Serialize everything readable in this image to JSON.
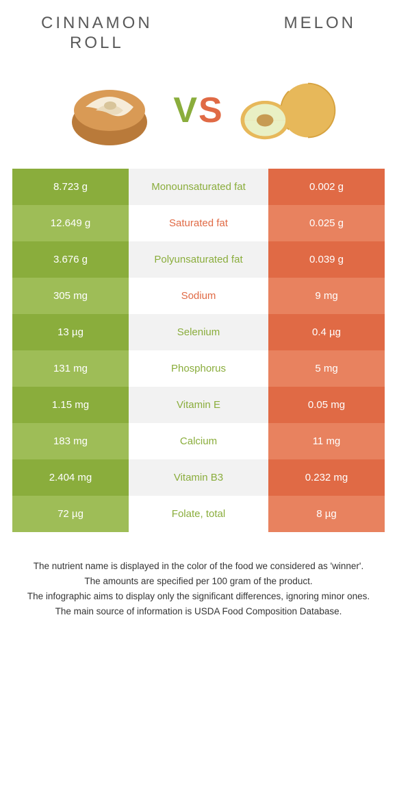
{
  "header": {
    "left_title": "CINNAMON\nROLL",
    "right_title": "MELON"
  },
  "vs": {
    "v": "V",
    "s": "S"
  },
  "colors": {
    "left_dark": "#8aad3c",
    "left_light": "#9ebd57",
    "right_dark": "#e06a45",
    "right_light": "#e8825f",
    "winner_left": "#8aad3c",
    "winner_right": "#e06a45"
  },
  "rows": [
    {
      "left": "8.723 g",
      "label": "Monounsaturated fat",
      "right": "0.002 g",
      "winner": "left"
    },
    {
      "left": "12.649 g",
      "label": "Saturated fat",
      "right": "0.025 g",
      "winner": "right"
    },
    {
      "left": "3.676 g",
      "label": "Polyunsaturated fat",
      "right": "0.039 g",
      "winner": "left"
    },
    {
      "left": "305 mg",
      "label": "Sodium",
      "right": "9 mg",
      "winner": "right"
    },
    {
      "left": "13 µg",
      "label": "Selenium",
      "right": "0.4 µg",
      "winner": "left"
    },
    {
      "left": "131 mg",
      "label": "Phosphorus",
      "right": "5 mg",
      "winner": "left"
    },
    {
      "left": "1.15 mg",
      "label": "Vitamin E",
      "right": "0.05 mg",
      "winner": "left"
    },
    {
      "left": "183 mg",
      "label": "Calcium",
      "right": "11 mg",
      "winner": "left"
    },
    {
      "left": "2.404 mg",
      "label": "Vitamin B3",
      "right": "0.232 mg",
      "winner": "left"
    },
    {
      "left": "72 µg",
      "label": "Folate, total",
      "right": "8 µg",
      "winner": "left"
    }
  ],
  "footer": {
    "line1": "The nutrient name is displayed in the color of the food we considered as 'winner'.",
    "line2": "The amounts are specified per 100 gram of the product.",
    "line3": "The infographic aims to display only the significant differences, ignoring minor ones.",
    "line4": "The main source of information is USDA Food Composition Database."
  }
}
